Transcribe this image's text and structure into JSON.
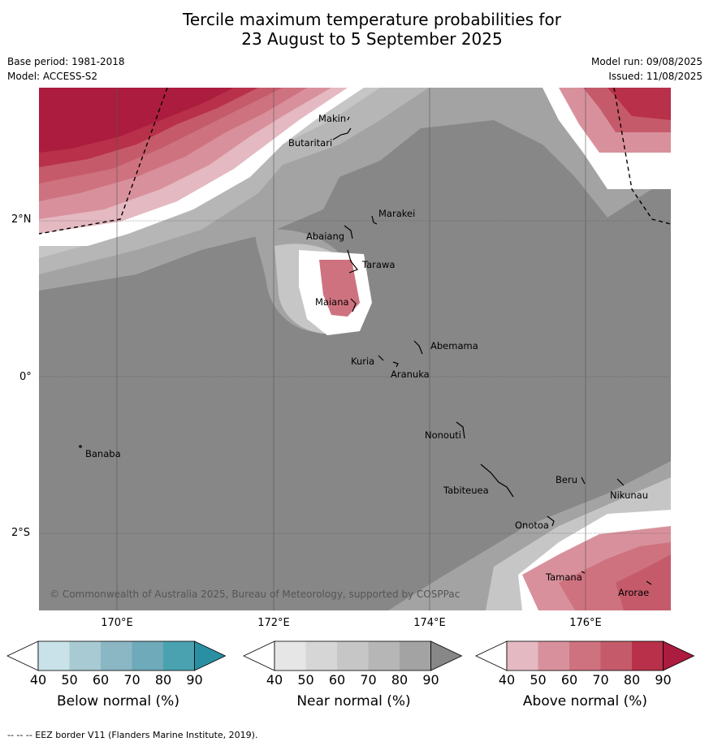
{
  "title_line1": "Tercile maximum temperature probabilities for",
  "title_line2": "23 August to 5 September 2025",
  "base_period": "Base period: 1981-2018",
  "model": "Model: ACCESS-S2",
  "model_run": "Model run: 09/08/2025",
  "issued": "Issued: 11/08/2025",
  "lat_labels": [
    "2°N",
    "0°",
    "2°S"
  ],
  "lon_labels": [
    "170°E",
    "172°E",
    "174°E",
    "176°E"
  ],
  "islands": {
    "makin": "Makin",
    "butaritari": "Butaritari",
    "marakei": "Marakei",
    "abaiang": "Abaiang",
    "tarawa": "Tarawa",
    "maiana": "Maiana",
    "abemama": "Abemama",
    "kuria": "Kuria",
    "aranuka": "Aranuka",
    "nonouti": "Nonouti",
    "banaba": "Banaba",
    "beru": "Beru",
    "nikunau": "Nikunau",
    "tabiteuea": "Tabiteuea",
    "onotoa": "Onotoa",
    "tamana": "Tamana",
    "arorae": "Arorae"
  },
  "copyright": "© Commonwealth of Australia 2025, Bureau of Meteorology, supported by COSPPac",
  "colorbars": [
    {
      "label": "Below normal (%)",
      "ticks": [
        "40",
        "50",
        "60",
        "70",
        "80",
        "90"
      ],
      "colors": [
        "#c9e2ea",
        "#a8cad3",
        "#8bb7c4",
        "#6eaab9",
        "#4aa2b1",
        "#2a8fa3"
      ]
    },
    {
      "label": "Near normal (%)",
      "ticks": [
        "40",
        "50",
        "60",
        "70",
        "80",
        "90"
      ],
      "colors": [
        "#e6e6e6",
        "#d6d6d6",
        "#c6c6c6",
        "#b6b6b6",
        "#a3a3a3",
        "#878787"
      ]
    },
    {
      "label": "Above normal (%)",
      "ticks": [
        "40",
        "50",
        "60",
        "70",
        "80",
        "90"
      ],
      "colors": [
        "#e4b9c1",
        "#d8919c",
        "#cf727f",
        "#c55b6a",
        "#b83049",
        "#ab1c3e"
      ]
    }
  ],
  "footer": "--  --  -- EEZ border V11 (Flanders Marine Institute, 2019)."
}
